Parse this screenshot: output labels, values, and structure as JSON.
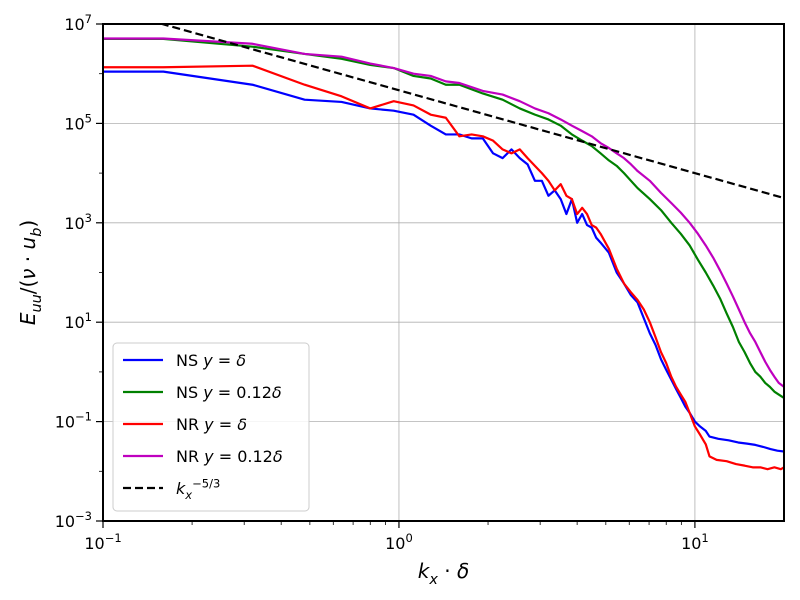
{
  "chart_data": {
    "type": "line",
    "xscale": "log",
    "yscale": "log",
    "xlim": [
      0.1,
      20
    ],
    "ylim": [
      0.001,
      10000000
    ],
    "grid": true,
    "legend_position": "lower-left",
    "xlabel_parts": [
      {
        "t": "k",
        "italic": true
      },
      {
        "t": "x",
        "italic": true,
        "sub": true
      },
      {
        "t": " · ",
        "italic": false
      },
      {
        "t": "δ",
        "italic": true
      }
    ],
    "ylabel_parts": [
      {
        "t": "E",
        "italic": true
      },
      {
        "t": "uu",
        "italic": true,
        "sub": true
      },
      {
        "t": "/(",
        "italic": false
      },
      {
        "t": "ν",
        "italic": true
      },
      {
        "t": " · ",
        "italic": false
      },
      {
        "t": "u",
        "italic": true
      },
      {
        "t": "b",
        "italic": true,
        "sub": true
      },
      {
        "t": ")",
        "italic": false
      }
    ],
    "xticks": [
      {
        "value": 0.1,
        "base": "10",
        "exp": "−1"
      },
      {
        "value": 1,
        "base": "10",
        "exp": "0"
      },
      {
        "value": 10,
        "base": "10",
        "exp": "1"
      }
    ],
    "yticks": [
      {
        "value": 0.001,
        "base": "10",
        "exp": "−3"
      },
      {
        "value": 0.1,
        "base": "10",
        "exp": "−1"
      },
      {
        "value": 10,
        "base": "10",
        "exp": "1"
      },
      {
        "value": 1000,
        "base": "10",
        "exp": "3"
      },
      {
        "value": 100000,
        "base": "10",
        "exp": "5"
      },
      {
        "value": 10000000,
        "base": "10",
        "exp": "7"
      }
    ],
    "series": [
      {
        "name": "NS y = δ",
        "legend_parts": [
          {
            "t": "NS ",
            "italic": false
          },
          {
            "t": "y",
            "italic": true
          },
          {
            "t": " = ",
            "italic": false
          },
          {
            "t": "δ",
            "italic": true
          }
        ],
        "color": "#0000ff",
        "dash": "solid",
        "x": [
          0.1,
          0.16,
          0.32,
          0.48,
          0.64,
          0.8,
          0.96,
          1.12,
          1.28,
          1.44,
          1.6,
          1.76,
          1.92,
          2.08,
          2.24,
          2.4,
          2.56,
          2.72,
          2.88,
          3.04,
          3.2,
          3.36,
          3.52,
          3.68,
          3.84,
          4.0,
          4.16,
          4.32,
          4.48,
          4.64,
          4.8,
          5.12,
          5.44,
          5.76,
          6.08,
          6.4,
          6.72,
          7.04,
          7.36,
          7.68,
          8.0,
          8.32,
          8.64,
          8.96,
          9.28,
          9.6,
          10.0,
          10.4,
          10.88,
          11.2,
          12.0,
          13.0,
          14.0,
          15.0,
          16.0,
          17.0,
          18.0,
          19.0,
          20.0
        ],
        "y": [
          1100000,
          1100000,
          600000,
          300000,
          270000,
          200000,
          180000,
          150000,
          90000,
          60000,
          60000,
          50000,
          50000,
          25000,
          20000,
          30000,
          20000,
          15000,
          7000,
          7000,
          3500,
          4500,
          3000,
          1500,
          3000,
          1000,
          1500,
          900,
          800,
          500,
          400,
          250,
          100,
          60,
          35,
          25,
          12,
          6,
          3.5,
          1.8,
          1.1,
          0.7,
          0.45,
          0.3,
          0.2,
          0.15,
          0.1,
          0.08,
          0.065,
          0.05,
          0.045,
          0.042,
          0.038,
          0.036,
          0.034,
          0.031,
          0.028,
          0.026,
          0.025
        ]
      },
      {
        "name": "NS y = 0.12δ",
        "legend_parts": [
          {
            "t": "NS ",
            "italic": false
          },
          {
            "t": "y",
            "italic": true
          },
          {
            "t": " = 0.12",
            "italic": false
          },
          {
            "t": "δ",
            "italic": true
          }
        ],
        "color": "#008000",
        "dash": "solid",
        "x": [
          0.1,
          0.16,
          0.32,
          0.48,
          0.64,
          0.8,
          0.96,
          1.12,
          1.28,
          1.44,
          1.6,
          1.92,
          2.24,
          2.56,
          2.88,
          3.2,
          3.52,
          3.84,
          4.16,
          4.48,
          4.8,
          5.12,
          5.44,
          5.76,
          6.08,
          6.4,
          7.04,
          7.68,
          8.32,
          8.96,
          9.6,
          10.24,
          10.88,
          11.52,
          12.16,
          12.8,
          13.44,
          14.08,
          14.72,
          15.36,
          16.0,
          16.64,
          17.28,
          17.92,
          18.56,
          19.2,
          20.0
        ],
        "y": [
          5000000,
          5000000,
          3500000,
          2500000,
          2000000,
          1500000,
          1300000,
          900000,
          800000,
          600000,
          600000,
          400000,
          300000,
          200000,
          150000,
          120000,
          90000,
          60000,
          45000,
          35000,
          25000,
          18000,
          14000,
          10000,
          7000,
          5000,
          3000,
          1800,
          1000,
          600,
          350,
          180,
          100,
          55,
          30,
          15,
          8,
          4,
          2.5,
          1.5,
          1,
          0.8,
          0.6,
          0.5,
          0.4,
          0.35,
          0.3
        ]
      },
      {
        "name": "NR y = δ",
        "legend_parts": [
          {
            "t": "NR ",
            "italic": false
          },
          {
            "t": "y",
            "italic": true
          },
          {
            "t": " = ",
            "italic": false
          },
          {
            "t": "δ",
            "italic": true
          }
        ],
        "color": "#ff0000",
        "dash": "solid",
        "x": [
          0.1,
          0.16,
          0.32,
          0.48,
          0.64,
          0.8,
          0.96,
          1.12,
          1.28,
          1.44,
          1.6,
          1.76,
          1.92,
          2.08,
          2.24,
          2.4,
          2.56,
          2.72,
          2.88,
          3.04,
          3.2,
          3.36,
          3.52,
          3.68,
          3.84,
          4.0,
          4.16,
          4.32,
          4.48,
          4.64,
          4.8,
          5.12,
          5.44,
          5.76,
          6.08,
          6.4,
          6.72,
          7.04,
          7.36,
          7.68,
          8.0,
          8.32,
          8.64,
          8.96,
          9.28,
          9.6,
          10.0,
          10.4,
          10.88,
          11.2,
          11.84,
          12.8,
          13.76,
          14.72,
          15.68,
          16.64,
          17.6,
          18.56,
          19.52,
          20.0
        ],
        "y": [
          1350000,
          1350000,
          1450000,
          600000,
          350000,
          200000,
          280000,
          230000,
          150000,
          130000,
          55000,
          60000,
          55000,
          45000,
          30000,
          25000,
          30000,
          20000,
          14000,
          10000,
          7000,
          4500,
          6000,
          3500,
          3000,
          1500,
          2000,
          1500,
          900,
          800,
          600,
          300,
          120,
          60,
          40,
          28,
          18,
          10,
          5,
          2.5,
          1.5,
          0.8,
          0.5,
          0.35,
          0.25,
          0.15,
          0.08,
          0.055,
          0.035,
          0.02,
          0.017,
          0.016,
          0.014,
          0.013,
          0.012,
          0.012,
          0.011,
          0.012,
          0.011,
          0.012
        ]
      },
      {
        "name": "NR y = 0.12δ",
        "legend_parts": [
          {
            "t": "NR ",
            "italic": false
          },
          {
            "t": "y",
            "italic": true
          },
          {
            "t": " = 0.12",
            "italic": false
          },
          {
            "t": "δ",
            "italic": true
          }
        ],
        "color": "#bf00bf",
        "dash": "solid",
        "x": [
          0.1,
          0.16,
          0.32,
          0.48,
          0.64,
          0.8,
          0.96,
          1.12,
          1.28,
          1.44,
          1.6,
          1.92,
          2.24,
          2.56,
          2.88,
          3.2,
          3.52,
          3.84,
          4.16,
          4.48,
          4.8,
          5.12,
          5.44,
          5.76,
          6.08,
          6.4,
          7.04,
          7.68,
          8.32,
          8.96,
          9.6,
          10.24,
          10.88,
          11.52,
          12.16,
          12.8,
          13.44,
          14.08,
          14.72,
          15.36,
          16.0,
          16.64,
          17.28,
          17.92,
          18.56,
          19.2,
          20.0
        ],
        "y": [
          5100000,
          5100000,
          4000000,
          2500000,
          2200000,
          1600000,
          1300000,
          1000000,
          900000,
          700000,
          650000,
          450000,
          380000,
          280000,
          200000,
          160000,
          120000,
          90000,
          70000,
          55000,
          40000,
          32000,
          25000,
          20000,
          15000,
          11000,
          7000,
          4000,
          2500,
          1600,
          1000,
          600,
          350,
          200,
          110,
          60,
          33,
          18,
          10,
          6,
          4,
          2.5,
          1.6,
          1.1,
          0.8,
          0.6,
          0.5
        ]
      },
      {
        "name": "kx^-5/3",
        "legend_parts": [
          {
            "t": "k",
            "italic": true
          },
          {
            "t": "x",
            "italic": true,
            "sub": true
          },
          {
            "t": "−5/3",
            "italic": false,
            "sup": true
          }
        ],
        "color": "#000000",
        "dash": "dashed",
        "x": [
          0.1,
          20
        ],
        "y": [
          21544347,
          3148
        ]
      }
    ]
  }
}
